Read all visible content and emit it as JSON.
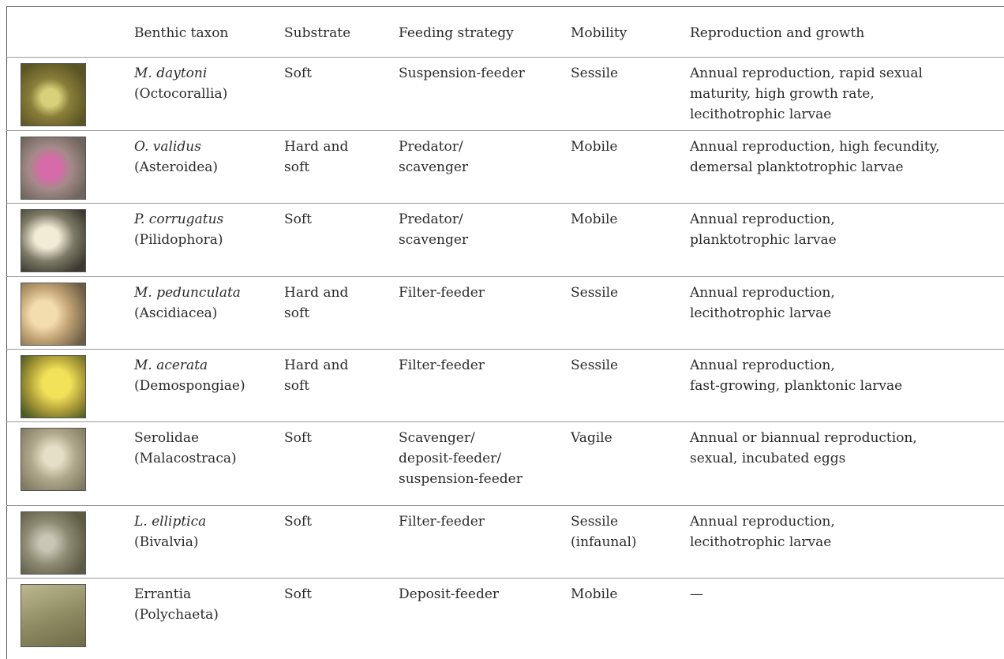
{
  "table": {
    "header": [
      "Benthic taxon",
      "Substrate",
      "Feeding strategy",
      "Mobility",
      "Reproduction and growth"
    ],
    "rows": [
      {
        "italic": true,
        "taxon": [
          "M. daytoni",
          "(Octocorallia)"
        ],
        "substrate": [
          "Soft"
        ],
        "feeding": [
          "Suspension-feeder"
        ],
        "mobility": [
          "Sessile"
        ],
        "reproduction": [
          "Annual reproduction, rapid sexual",
          "maturity, high growth rate,",
          "lecithotrophic larvae"
        ]
      },
      {
        "italic": true,
        "taxon": [
          "O. validus",
          "(Asteroidea)"
        ],
        "substrate": [
          "Hard and",
          "soft"
        ],
        "feeding": [
          "Predator/",
          "scavenger"
        ],
        "mobility": [
          "Mobile"
        ],
        "reproduction": [
          "Annual reproduction, high fecundity,",
          "demersal planktotrophic larvae"
        ]
      },
      {
        "italic": true,
        "taxon": [
          "P. corrugatus",
          "(Pilidophora)"
        ],
        "substrate": [
          "Soft"
        ],
        "feeding": [
          "Predator/",
          "scavenger"
        ],
        "mobility": [
          "Mobile"
        ],
        "reproduction": [
          "Annual reproduction,",
          "planktotrophic larvae"
        ]
      },
      {
        "italic": true,
        "taxon": [
          "M. pedunculata",
          "(Ascidiacea)"
        ],
        "substrate": [
          "Hard and",
          "soft"
        ],
        "feeding": [
          "Filter-feeder"
        ],
        "mobility": [
          "Sessile"
        ],
        "reproduction": [
          "Annual reproduction,",
          "lecithotrophic larvae"
        ]
      },
      {
        "italic": true,
        "taxon": [
          "M. acerata",
          "(Demospongiae)"
        ],
        "substrate": [
          "Hard and",
          "soft"
        ],
        "feeding": [
          "Filter-feeder"
        ],
        "mobility": [
          "Sessile"
        ],
        "reproduction": [
          "Annual reproduction,",
          "fast-growing, planktonic larvae"
        ]
      },
      {
        "italic": false,
        "taxon": [
          "Serolidae",
          "(Malacostraca)"
        ],
        "substrate": [
          "Soft"
        ],
        "feeding": [
          "Scavenger/",
          "deposit-feeder/",
          "suspension-feeder"
        ],
        "mobility": [
          "Vagile"
        ],
        "reproduction": [
          "Annual or biannual reproduction,",
          "sexual, incubated eggs"
        ]
      },
      {
        "italic": true,
        "taxon": [
          "L. elliptica",
          "(Bivalvia)"
        ],
        "substrate": [
          "Soft"
        ],
        "feeding": [
          "Filter-feeder"
        ],
        "mobility": [
          "Sessile",
          "(infaunal)"
        ],
        "reproduction": [
          "Annual reproduction,",
          "lecithotrophic larvae"
        ]
      },
      {
        "italic": false,
        "taxon": [
          "Errantia",
          "(Polychaeta)"
        ],
        "substrate": [
          "Soft"
        ],
        "feeding": [
          "Deposit-feeder"
        ],
        "mobility": [
          "Mobile"
        ],
        "reproduction": [
          "—"
        ]
      }
    ]
  }
}
